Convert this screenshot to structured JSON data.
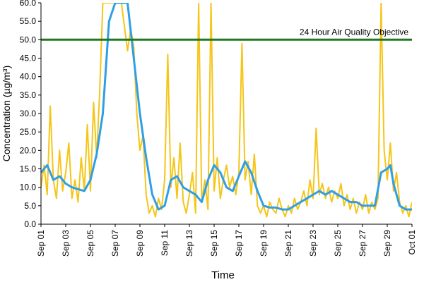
{
  "chart_data": {
    "type": "line",
    "title": "",
    "xlabel": "Time",
    "ylabel": "Concentration (µg/m³)",
    "ylim": [
      0,
      60
    ],
    "xlim": [
      "2023-09-01",
      "2023-10-01"
    ],
    "yticks": [
      "0.0",
      "5.0",
      "10.0",
      "15.0",
      "20.0",
      "25.0",
      "30.0",
      "35.0",
      "40.0",
      "45.0",
      "50.0",
      "55.0",
      "60.0"
    ],
    "xticks": [
      "Sep 01",
      "Sep 03",
      "Sep 05",
      "Sep 07",
      "Sep 09",
      "Sep 11",
      "Sep 13",
      "Sep 15",
      "Sep 17",
      "Sep 19",
      "Sep 21",
      "Sep 23",
      "Sep 25",
      "Sep 27",
      "Sep 29",
      "Oct 01"
    ],
    "grid": false,
    "annotation": "24 Hour Air Quality Objective",
    "objective_value": 50,
    "series": [
      {
        "color": "#F5C518",
        "points": [
          [
            "2023-09-01T00",
            10
          ],
          [
            "2023-09-01T06",
            16
          ],
          [
            "2023-09-01T12",
            8
          ],
          [
            "2023-09-01T18",
            32
          ],
          [
            "2023-09-02T00",
            12
          ],
          [
            "2023-09-02T06",
            7
          ],
          [
            "2023-09-02T12",
            20
          ],
          [
            "2023-09-02T18",
            9
          ],
          [
            "2023-09-03T00",
            14
          ],
          [
            "2023-09-03T06",
            22
          ],
          [
            "2023-09-03T12",
            7
          ],
          [
            "2023-09-03T18",
            12
          ],
          [
            "2023-09-04T00",
            6
          ],
          [
            "2023-09-04T06",
            18
          ],
          [
            "2023-09-04T12",
            9
          ],
          [
            "2023-09-04T18",
            27
          ],
          [
            "2023-09-05T00",
            9
          ],
          [
            "2023-09-05T06",
            33
          ],
          [
            "2023-09-05T12",
            18
          ],
          [
            "2023-09-05T18",
            36
          ],
          [
            "2023-09-06T00",
            60
          ],
          [
            "2023-09-06T12",
            60
          ],
          [
            "2023-09-07T00",
            60
          ],
          [
            "2023-09-07T12",
            60
          ],
          [
            "2023-09-08T00",
            47
          ],
          [
            "2023-09-08T06",
            53
          ],
          [
            "2023-09-08T12",
            48
          ],
          [
            "2023-09-08T18",
            30
          ],
          [
            "2023-09-09T00",
            20
          ],
          [
            "2023-09-09T06",
            24
          ],
          [
            "2023-09-09T12",
            8
          ],
          [
            "2023-09-09T18",
            3
          ],
          [
            "2023-09-10T00",
            5
          ],
          [
            "2023-09-10T06",
            2
          ],
          [
            "2023-09-10T12",
            7
          ],
          [
            "2023-09-10T18",
            4
          ],
          [
            "2023-09-11T00",
            12
          ],
          [
            "2023-09-11T06",
            46
          ],
          [
            "2023-09-11T12",
            10
          ],
          [
            "2023-09-11T18",
            18
          ],
          [
            "2023-09-12T00",
            7
          ],
          [
            "2023-09-12T06",
            22
          ],
          [
            "2023-09-12T12",
            6
          ],
          [
            "2023-09-12T18",
            3
          ],
          [
            "2023-09-13T00",
            8
          ],
          [
            "2023-09-13T06",
            14
          ],
          [
            "2023-09-13T12",
            3
          ],
          [
            "2023-09-13T18",
            60
          ],
          [
            "2023-09-14T00",
            6
          ],
          [
            "2023-09-14T06",
            12
          ],
          [
            "2023-09-14T12",
            4
          ],
          [
            "2023-09-14T18",
            60
          ],
          [
            "2023-09-15T00",
            9
          ],
          [
            "2023-09-15T06",
            18
          ],
          [
            "2023-09-15T12",
            7
          ],
          [
            "2023-09-15T18",
            12
          ],
          [
            "2023-09-16T00",
            16
          ],
          [
            "2023-09-16T06",
            10
          ],
          [
            "2023-09-16T12",
            13
          ],
          [
            "2023-09-16T18",
            8
          ],
          [
            "2023-09-17T00",
            14
          ],
          [
            "2023-09-17T06",
            49
          ],
          [
            "2023-09-17T12",
            12
          ],
          [
            "2023-09-17T18",
            17
          ],
          [
            "2023-09-18T00",
            8
          ],
          [
            "2023-09-18T06",
            19
          ],
          [
            "2023-09-18T12",
            5
          ],
          [
            "2023-09-18T18",
            3
          ],
          [
            "2023-09-19T00",
            5
          ],
          [
            "2023-09-19T06",
            2
          ],
          [
            "2023-09-19T12",
            6
          ],
          [
            "2023-09-19T18",
            4
          ],
          [
            "2023-09-20T00",
            3
          ],
          [
            "2023-09-20T06",
            7
          ],
          [
            "2023-09-20T12",
            4
          ],
          [
            "2023-09-20T18",
            2
          ],
          [
            "2023-09-21T00",
            5
          ],
          [
            "2023-09-21T06",
            3
          ],
          [
            "2023-09-21T12",
            7
          ],
          [
            "2023-09-21T18",
            4
          ],
          [
            "2023-09-22T00",
            6
          ],
          [
            "2023-09-22T06",
            9
          ],
          [
            "2023-09-22T12",
            5
          ],
          [
            "2023-09-22T18",
            12
          ],
          [
            "2023-09-23T00",
            7
          ],
          [
            "2023-09-23T06",
            26
          ],
          [
            "2023-09-23T12",
            8
          ],
          [
            "2023-09-23T18",
            11
          ],
          [
            "2023-09-24T00",
            7
          ],
          [
            "2023-09-24T06",
            10
          ],
          [
            "2023-09-24T12",
            6
          ],
          [
            "2023-09-24T18",
            9
          ],
          [
            "2023-09-25T00",
            7
          ],
          [
            "2023-09-25T06",
            11
          ],
          [
            "2023-09-25T12",
            5
          ],
          [
            "2023-09-25T18",
            8
          ],
          [
            "2023-09-26T00",
            4
          ],
          [
            "2023-09-26T06",
            7
          ],
          [
            "2023-09-26T12",
            3
          ],
          [
            "2023-09-26T18",
            6
          ],
          [
            "2023-09-27T00",
            4
          ],
          [
            "2023-09-27T06",
            8
          ],
          [
            "2023-09-27T12",
            3
          ],
          [
            "2023-09-27T18",
            6
          ],
          [
            "2023-09-28T00",
            4
          ],
          [
            "2023-09-28T06",
            7
          ],
          [
            "2023-09-28T12",
            60
          ],
          [
            "2023-09-28T18",
            20
          ],
          [
            "2023-09-29T00",
            12
          ],
          [
            "2023-09-29T06",
            22
          ],
          [
            "2023-09-29T12",
            9
          ],
          [
            "2023-09-29T18",
            14
          ],
          [
            "2023-09-30T00",
            6
          ],
          [
            "2023-09-30T06",
            3
          ],
          [
            "2023-09-30T12",
            5
          ],
          [
            "2023-09-30T18",
            2
          ],
          [
            "2023-10-01T00",
            6
          ]
        ]
      },
      {
        "color": "#2E9FE6",
        "points": [
          [
            "2023-09-01T00",
            14
          ],
          [
            "2023-09-01T12",
            16
          ],
          [
            "2023-09-02T00",
            12
          ],
          [
            "2023-09-02T12",
            13
          ],
          [
            "2023-09-03T00",
            11
          ],
          [
            "2023-09-03T12",
            10
          ],
          [
            "2023-09-04T00",
            9.5
          ],
          [
            "2023-09-04T12",
            9
          ],
          [
            "2023-09-05T00",
            12
          ],
          [
            "2023-09-05T12",
            19
          ],
          [
            "2023-09-06T00",
            30
          ],
          [
            "2023-09-06T12",
            55
          ],
          [
            "2023-09-07T00",
            60
          ],
          [
            "2023-09-07T12",
            60
          ],
          [
            "2023-09-08T00",
            60
          ],
          [
            "2023-09-08T12",
            45
          ],
          [
            "2023-09-09T00",
            30
          ],
          [
            "2023-09-09T12",
            18
          ],
          [
            "2023-09-10T00",
            8
          ],
          [
            "2023-09-10T12",
            4
          ],
          [
            "2023-09-11T00",
            5
          ],
          [
            "2023-09-11T12",
            12
          ],
          [
            "2023-09-12T00",
            13
          ],
          [
            "2023-09-12T12",
            10
          ],
          [
            "2023-09-13T00",
            9
          ],
          [
            "2023-09-13T12",
            8
          ],
          [
            "2023-09-14T00",
            6
          ],
          [
            "2023-09-14T12",
            12
          ],
          [
            "2023-09-15T00",
            16
          ],
          [
            "2023-09-15T12",
            14
          ],
          [
            "2023-09-16T00",
            10
          ],
          [
            "2023-09-16T12",
            9
          ],
          [
            "2023-09-17T00",
            13
          ],
          [
            "2023-09-17T12",
            17
          ],
          [
            "2023-09-18T00",
            14
          ],
          [
            "2023-09-18T12",
            9
          ],
          [
            "2023-09-19T00",
            5
          ],
          [
            "2023-09-19T12",
            4.5
          ],
          [
            "2023-09-20T00",
            4.5
          ],
          [
            "2023-09-20T12",
            4
          ],
          [
            "2023-09-21T00",
            4
          ],
          [
            "2023-09-21T12",
            5
          ],
          [
            "2023-09-22T00",
            6
          ],
          [
            "2023-09-22T12",
            7
          ],
          [
            "2023-09-23T00",
            8
          ],
          [
            "2023-09-23T12",
            9
          ],
          [
            "2023-09-24T00",
            8
          ],
          [
            "2023-09-24T12",
            9
          ],
          [
            "2023-09-25T00",
            8
          ],
          [
            "2023-09-25T12",
            7
          ],
          [
            "2023-09-26T00",
            6
          ],
          [
            "2023-09-26T12",
            6
          ],
          [
            "2023-09-27T00",
            5
          ],
          [
            "2023-09-27T12",
            5
          ],
          [
            "2023-09-28T00",
            5
          ],
          [
            "2023-09-28T12",
            14
          ],
          [
            "2023-09-29T00",
            15
          ],
          [
            "2023-09-29T06",
            16
          ],
          [
            "2023-09-29T12",
            11
          ],
          [
            "2023-09-30T00",
            5
          ],
          [
            "2023-09-30T12",
            4
          ],
          [
            "2023-10-01T00",
            4
          ]
        ]
      },
      {
        "color": "#1F7A1F",
        "points": [
          [
            "2023-09-01T00",
            50
          ],
          [
            "2023-10-01T00",
            50
          ]
        ]
      }
    ]
  }
}
